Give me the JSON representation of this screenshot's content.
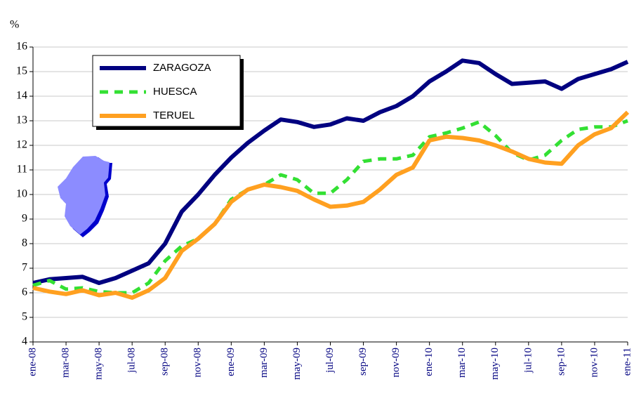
{
  "chart_data": {
    "type": "line",
    "y_unit_label": "%",
    "categories": [
      "ene-08",
      null,
      "mar-08",
      null,
      "may-08",
      null,
      "jul-08",
      null,
      "sep-08",
      null,
      "nov-08",
      null,
      "ene-09",
      null,
      "mar-09",
      null,
      "may-09",
      null,
      "jul-09",
      null,
      "sep-09",
      null,
      "nov-09",
      null,
      "ene-10",
      null,
      "mar-10",
      null,
      "may-10",
      null,
      "jul-10",
      null,
      "sep-10",
      null,
      "nov-10",
      null,
      "ene-11"
    ],
    "series": [
      {
        "name": "ZARAGOZA",
        "color": "#000080",
        "values": [
          6.4,
          6.55,
          6.6,
          6.65,
          6.4,
          6.6,
          6.9,
          7.2,
          8.0,
          9.3,
          10.0,
          10.8,
          11.5,
          12.1,
          12.6,
          13.05,
          12.95,
          12.75,
          12.85,
          13.1,
          13.0,
          13.35,
          13.6,
          14.0,
          14.6,
          15.0,
          15.45,
          15.35,
          14.9,
          14.5,
          14.55,
          14.6,
          14.3,
          14.7,
          14.9,
          15.1,
          15.4
        ]
      },
      {
        "name": "HUESCA",
        "color": "#33e033",
        "dashed": true,
        "values": [
          6.3,
          6.5,
          6.15,
          6.2,
          6.05,
          6.0,
          6.0,
          6.4,
          7.3,
          7.9,
          8.2,
          8.8,
          9.8,
          10.2,
          10.4,
          10.8,
          10.6,
          10.05,
          10.05,
          10.6,
          11.35,
          11.45,
          11.45,
          11.6,
          12.35,
          12.5,
          12.7,
          12.95,
          12.4,
          11.7,
          11.4,
          11.6,
          12.2,
          12.65,
          12.75,
          12.75,
          13.0
        ]
      },
      {
        "name": "TERUEL",
        "color": "#ffa020",
        "values": [
          6.2,
          6.05,
          5.95,
          6.1,
          5.9,
          6.0,
          5.8,
          6.1,
          6.6,
          7.7,
          8.2,
          8.8,
          9.7,
          10.2,
          10.4,
          10.3,
          10.15,
          9.8,
          9.5,
          9.55,
          9.7,
          10.2,
          10.8,
          11.1,
          12.2,
          12.35,
          12.3,
          12.2,
          12.0,
          11.75,
          11.45,
          11.3,
          11.25,
          12.0,
          12.45,
          12.7,
          13.35
        ]
      }
    ],
    "ylim": [
      4,
      16
    ],
    "yticks": [
      4,
      5,
      6,
      7,
      8,
      9,
      10,
      11,
      12,
      13,
      14,
      15,
      16
    ],
    "grid": true
  }
}
